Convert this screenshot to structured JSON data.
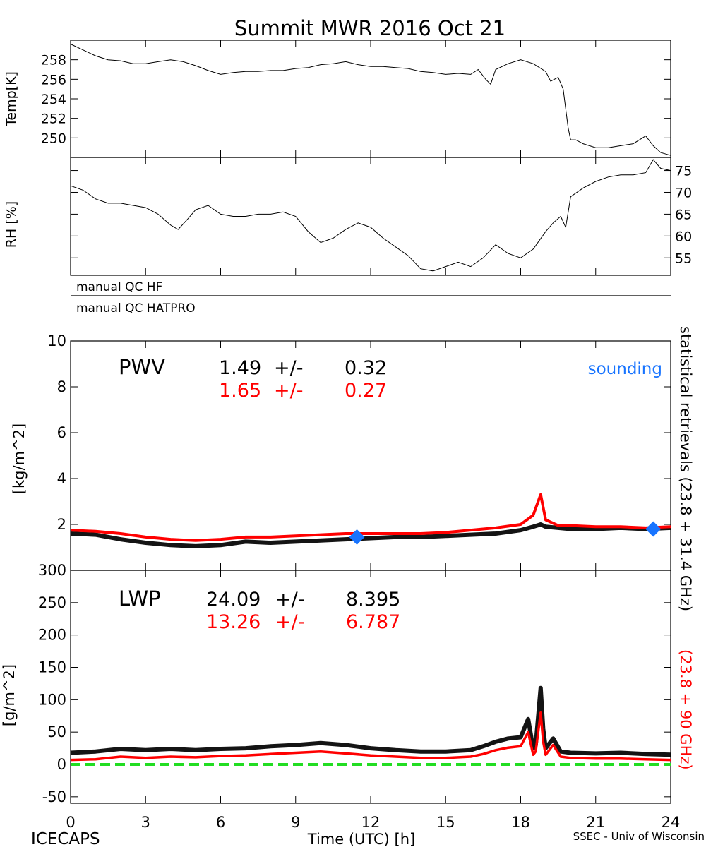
{
  "title": "Summit MWR 2016 Oct 21",
  "qc_labels": [
    "manual QC HF",
    "manual QC HATPRO"
  ],
  "footer": {
    "left": "ICECAPS",
    "right": "SSEC - Univ of Wisconsin"
  },
  "side_labels": {
    "black": "statistical retrievals (23.8 + 31.4 GHz)",
    "red": "(23.8 + 90 GHz)"
  },
  "colors": {
    "black_series": "#000000",
    "red_series": "#ff0000",
    "sounding": "#1874ff",
    "zero_line": "#22dd22"
  },
  "chart_data": [
    {
      "type": "line",
      "panel": "temperature",
      "ylabel": "Temp[K]",
      "xlim": [
        0,
        24
      ],
      "ylim": [
        248,
        260
      ],
      "yticks": [
        250,
        252,
        254,
        256,
        258
      ],
      "series": [
        {
          "color": "#000000",
          "x": [
            0,
            0.5,
            1,
            1.5,
            2,
            2.5,
            3,
            3.5,
            4,
            4.5,
            5,
            5.5,
            6,
            6.5,
            7,
            7.5,
            8,
            8.5,
            9,
            9.5,
            10,
            10.5,
            11,
            11.5,
            12,
            12.5,
            13,
            13.5,
            14,
            14.5,
            15,
            15.5,
            16,
            16.3,
            16.6,
            16.8,
            17,
            17.5,
            18,
            18.5,
            19,
            19.2,
            19.5,
            19.7,
            19.9,
            20,
            20.2,
            20.5,
            21,
            21.5,
            22,
            22.5,
            23,
            23.3,
            23.6,
            24
          ],
          "y": [
            259.6,
            259,
            258.4,
            258,
            257.9,
            257.6,
            257.6,
            257.8,
            258,
            257.8,
            257.4,
            256.9,
            256.5,
            256.7,
            256.8,
            256.8,
            256.9,
            256.9,
            257.1,
            257.2,
            257.5,
            257.6,
            257.8,
            257.5,
            257.3,
            257.3,
            257.2,
            257.1,
            256.8,
            256.7,
            256.5,
            256.6,
            256.5,
            257,
            256,
            255.5,
            257,
            257.6,
            258,
            257.6,
            256.8,
            255.8,
            256.2,
            255,
            251,
            249.8,
            249.8,
            249.4,
            249,
            249,
            249.2,
            249.4,
            250.2,
            249.2,
            248.5,
            248.2
          ]
        }
      ]
    },
    {
      "type": "line",
      "panel": "relative_humidity",
      "ylabel": "RH [%]",
      "xlim": [
        0,
        24
      ],
      "ylim": [
        51,
        78
      ],
      "yticks": [
        55,
        60,
        65,
        70,
        75
      ],
      "series": [
        {
          "color": "#000000",
          "x": [
            0,
            0.5,
            1,
            1.5,
            2,
            2.5,
            3,
            3.5,
            4,
            4.3,
            4.7,
            5,
            5.5,
            6,
            6.5,
            7,
            7.5,
            8,
            8.5,
            9,
            9.5,
            10,
            10.5,
            11,
            11.5,
            12,
            12.5,
            13,
            13.5,
            14,
            14.5,
            15,
            15.5,
            16,
            16.5,
            17,
            17.5,
            18,
            18.5,
            19,
            19.3,
            19.6,
            19.8,
            20,
            20.5,
            21,
            21.5,
            22,
            22.5,
            23,
            23.3,
            23.6,
            24
          ],
          "y": [
            71.5,
            70.5,
            68.5,
            67.5,
            67.5,
            67,
            66.5,
            65,
            62.5,
            61.5,
            64,
            66,
            67,
            65,
            64.5,
            64.5,
            65,
            65,
            65.5,
            64.5,
            61,
            58.5,
            59.5,
            61.5,
            63,
            62,
            59.5,
            57.5,
            55.5,
            52.5,
            52,
            53,
            54,
            53,
            55,
            58,
            56,
            55,
            57,
            61,
            63,
            64.5,
            62,
            69,
            71,
            72.5,
            73.5,
            74,
            74,
            74.5,
            77.5,
            75.5,
            75
          ]
        }
      ]
    },
    {
      "type": "line",
      "panel": "pwv",
      "title": "PWV",
      "ylabel": "[kg/m^2]",
      "xlim": [
        0,
        24
      ],
      "ylim": [
        0,
        10
      ],
      "yticks": [
        0,
        2,
        4,
        6,
        8,
        10
      ],
      "stats": [
        {
          "color": "#000000",
          "mean": "1.49",
          "pm": "+/-",
          "sd": "0.32"
        },
        {
          "color": "#ff0000",
          "mean": "1.65",
          "pm": "+/-",
          "sd": "0.27"
        }
      ],
      "sounding_label": "sounding",
      "soundings": [
        {
          "x": 11.45,
          "y": 1.45
        },
        {
          "x": 23.3,
          "y": 1.8
        }
      ],
      "series": [
        {
          "color": "#000000",
          "x": [
            0,
            1,
            2,
            3,
            4,
            5,
            6,
            7,
            8,
            9,
            10,
            11,
            12,
            13,
            14,
            15,
            16,
            17,
            18,
            18.5,
            18.8,
            19,
            19.5,
            20,
            21,
            22,
            23,
            24
          ],
          "y": [
            1.6,
            1.55,
            1.35,
            1.2,
            1.1,
            1.05,
            1.1,
            1.25,
            1.2,
            1.25,
            1.3,
            1.35,
            1.4,
            1.45,
            1.45,
            1.5,
            1.55,
            1.6,
            1.75,
            1.9,
            2.0,
            1.9,
            1.85,
            1.8,
            1.8,
            1.85,
            1.8,
            1.85
          ]
        },
        {
          "color": "#ff0000",
          "x": [
            0,
            1,
            2,
            3,
            4,
            5,
            6,
            7,
            8,
            9,
            10,
            11,
            12,
            13,
            14,
            15,
            16,
            17,
            18,
            18.5,
            18.8,
            19,
            19.5,
            20,
            21,
            22,
            23,
            24
          ],
          "y": [
            1.75,
            1.7,
            1.6,
            1.45,
            1.35,
            1.3,
            1.35,
            1.45,
            1.45,
            1.5,
            1.55,
            1.6,
            1.6,
            1.6,
            1.6,
            1.65,
            1.75,
            1.85,
            2.0,
            2.4,
            3.3,
            2.2,
            1.95,
            1.95,
            1.9,
            1.9,
            1.85,
            1.9
          ]
        }
      ]
    },
    {
      "type": "line",
      "panel": "lwp",
      "title": "LWP",
      "ylabel": "[g/m^2]",
      "xlabel": "Time (UTC) [h]",
      "xlim": [
        0,
        24
      ],
      "ylim": [
        -60,
        300
      ],
      "yticks": [
        -50,
        0,
        50,
        100,
        150,
        200,
        250,
        300
      ],
      "xticks": [
        0,
        3,
        6,
        9,
        12,
        15,
        18,
        21,
        24
      ],
      "reference_line": {
        "y": 0,
        "style": "dashed",
        "color": "#22dd22"
      },
      "stats": [
        {
          "color": "#000000",
          "mean": "24.09",
          "pm": "+/-",
          "sd": "8.395"
        },
        {
          "color": "#ff0000",
          "mean": "13.26",
          "pm": "+/-",
          "sd": "6.787"
        }
      ],
      "series": [
        {
          "color": "#000000",
          "x": [
            0,
            1,
            2,
            3,
            4,
            5,
            6,
            7,
            8,
            9,
            10,
            11,
            12,
            13,
            14,
            15,
            16,
            16.5,
            17,
            17.5,
            18,
            18.3,
            18.5,
            18.6,
            18.8,
            18.9,
            19,
            19.3,
            19.6,
            20,
            21,
            22,
            23,
            24
          ],
          "y": [
            18,
            20,
            24,
            22,
            24,
            22,
            24,
            25,
            28,
            30,
            33,
            30,
            25,
            22,
            20,
            20,
            22,
            28,
            35,
            40,
            42,
            70,
            25,
            30,
            118,
            55,
            25,
            40,
            20,
            18,
            17,
            18,
            16,
            15
          ]
        },
        {
          "color": "#ff0000",
          "x": [
            0,
            1,
            2,
            3,
            4,
            5,
            6,
            7,
            8,
            9,
            10,
            11,
            12,
            13,
            14,
            15,
            16,
            16.5,
            17,
            17.5,
            18,
            18.3,
            18.5,
            18.6,
            18.8,
            18.9,
            19,
            19.3,
            19.6,
            20,
            21,
            22,
            23,
            24
          ],
          "y": [
            7,
            8,
            12,
            10,
            12,
            11,
            13,
            14,
            16,
            18,
            20,
            17,
            14,
            12,
            10,
            10,
            12,
            16,
            22,
            26,
            28,
            50,
            15,
            20,
            80,
            35,
            15,
            30,
            12,
            10,
            9,
            9,
            8,
            7
          ]
        }
      ]
    }
  ]
}
